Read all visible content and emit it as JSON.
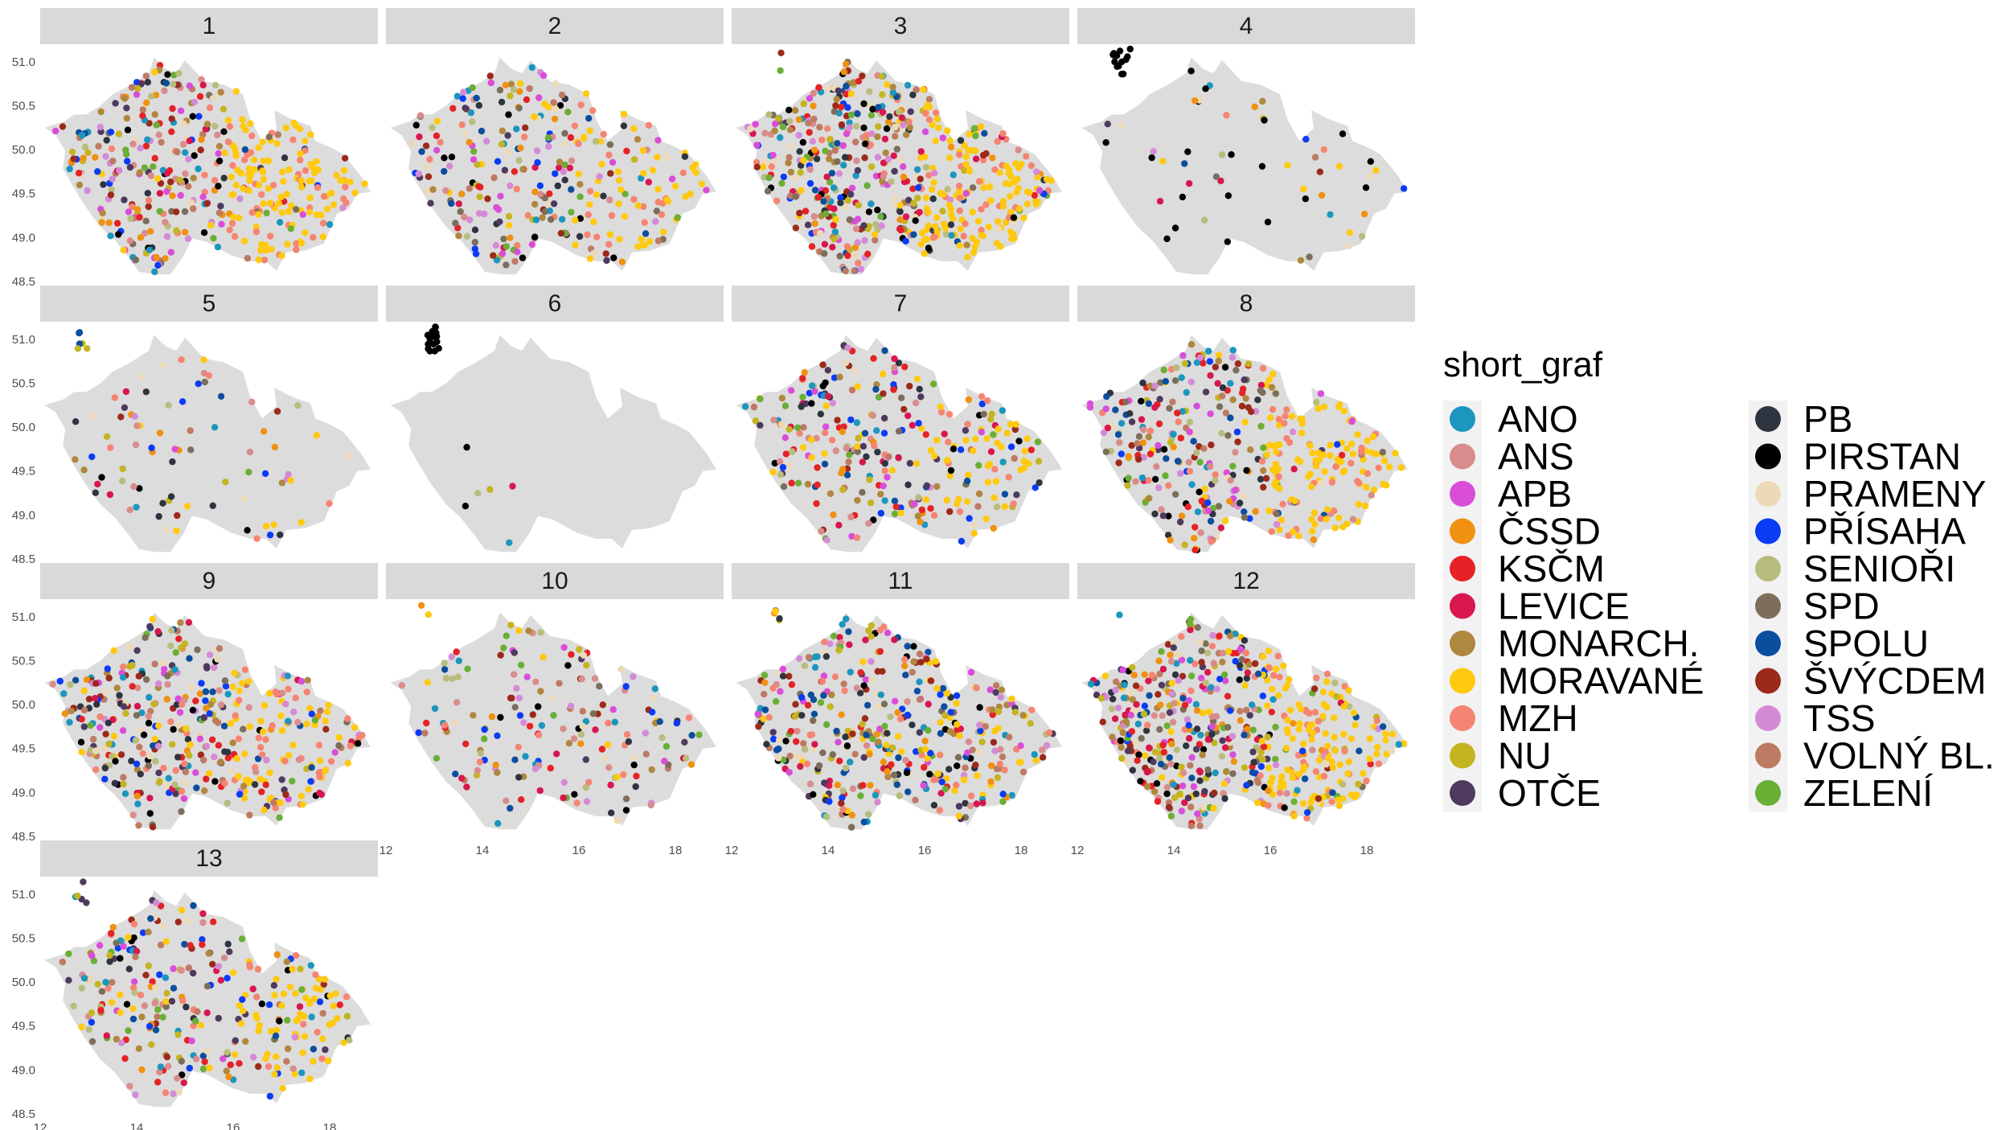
{
  "chart_data": {
    "type": "scatter",
    "subtype": "faceted map",
    "facets": [
      "1",
      "2",
      "3",
      "4",
      "5",
      "6",
      "7",
      "8",
      "9",
      "10",
      "11",
      "12",
      "13"
    ],
    "x_ticks": [
      12,
      14,
      16,
      18
    ],
    "y_ticks": [
      48.5,
      49.0,
      49.5,
      50.0,
      50.5,
      51.0
    ],
    "x_tick_labels": [
      "12",
      "14",
      "16",
      "18"
    ],
    "y_tick_labels": [
      "48.5",
      "49.0",
      "49.5",
      "50.0",
      "50.5",
      "51.0"
    ],
    "xlim": [
      12.0,
      19.0
    ],
    "ylim": [
      48.5,
      51.2
    ],
    "legend": {
      "title": "short_graf",
      "position": "right",
      "entries": [
        {
          "label": "ANO",
          "color": "#1B96BF"
        },
        {
          "label": "ANS",
          "color": "#D98C8C"
        },
        {
          "label": "APB",
          "color": "#D94DD9"
        },
        {
          "label": "ČSSD",
          "color": "#F0910F"
        },
        {
          "label": "KSČM",
          "color": "#E52226"
        },
        {
          "label": "LEVICE",
          "color": "#D8174E"
        },
        {
          "label": "MONARCH.",
          "color": "#B0873F"
        },
        {
          "label": "MORAVANÉ",
          "color": "#FFC90E"
        },
        {
          "label": "MZH",
          "color": "#F58472"
        },
        {
          "label": "NU",
          "color": "#C4B420"
        },
        {
          "label": "OTČE",
          "color": "#4E3A5E"
        },
        {
          "label": "PB",
          "color": "#2E3440"
        },
        {
          "label": "PIRSTAN",
          "color": "#000000"
        },
        {
          "label": "PRAMENY",
          "color": "#EDD9B8"
        },
        {
          "label": "PŘÍSAHA",
          "color": "#0A3CF5"
        },
        {
          "label": "SENIOŘI",
          "color": "#B8BC7C"
        },
        {
          "label": "SPD",
          "color": "#7C6E5A"
        },
        {
          "label": "SPOLU",
          "color": "#0C4E9E"
        },
        {
          "label": "ŠVÝCDEM",
          "color": "#9C2A1B"
        },
        {
          "label": "TSS",
          "color": "#D48AD6"
        },
        {
          "label": "VOLNÝ BL.",
          "color": "#BE7A63"
        },
        {
          "label": "ZELENÍ",
          "color": "#6AAF35"
        }
      ]
    }
  }
}
